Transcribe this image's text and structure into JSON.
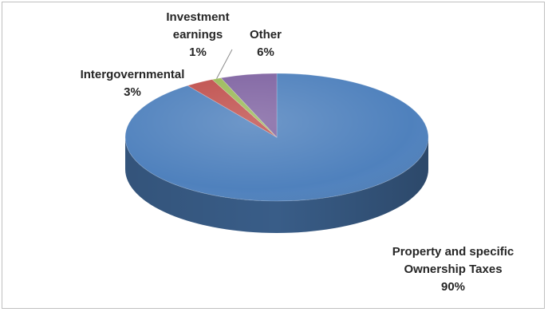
{
  "chart_data": {
    "type": "pie",
    "style": "3d",
    "title": "",
    "legend": "none",
    "slices": [
      {
        "label_lines": [
          "Property and specific",
          "Ownership Taxes"
        ],
        "value": 90,
        "value_label": "90%",
        "color": "#4f81bd"
      },
      {
        "label_lines": [
          "Intergovernmental"
        ],
        "value": 3,
        "value_label": "3%",
        "color": "#c0504d"
      },
      {
        "label_lines": [
          "Investment",
          "earnings"
        ],
        "value": 1,
        "value_label": "1%",
        "color": "#9bbb59"
      },
      {
        "label_lines": [
          "Other"
        ],
        "value": 6,
        "value_label": "6%",
        "color": "#8064a2"
      }
    ]
  }
}
